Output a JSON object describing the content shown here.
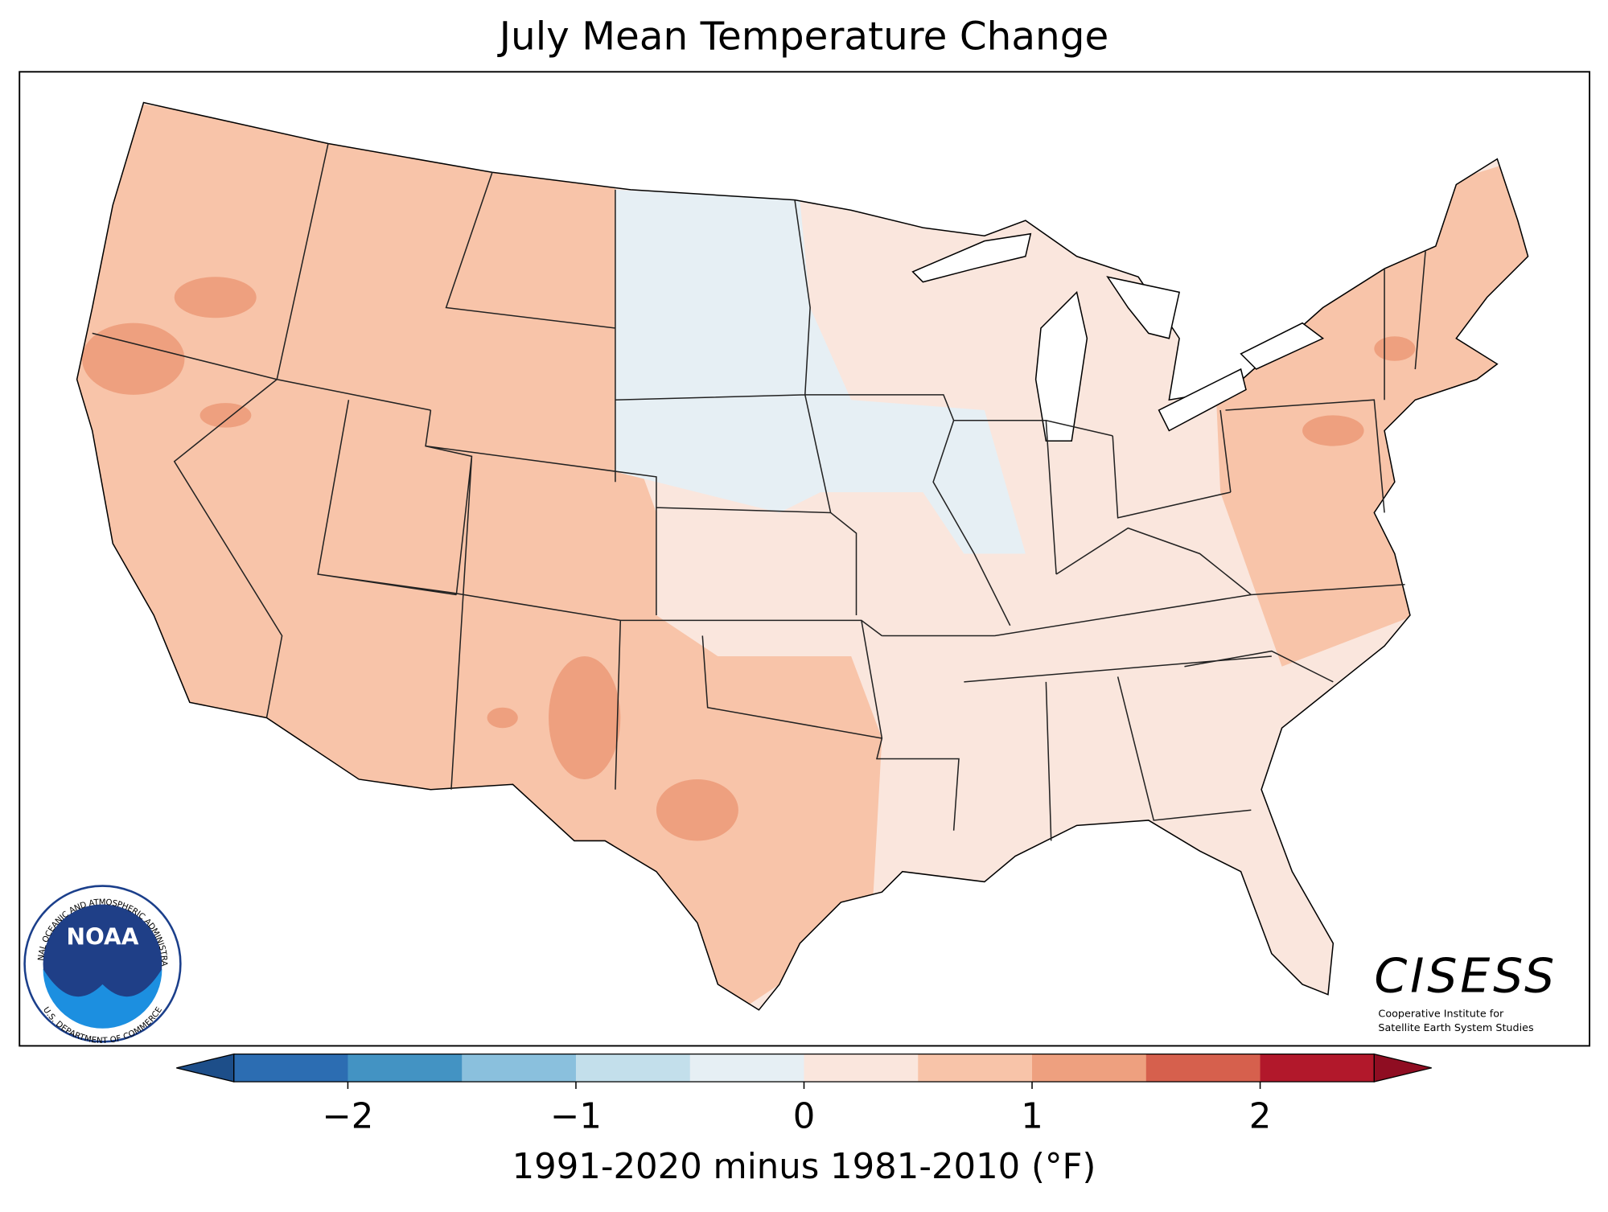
{
  "title": "July Mean Temperature Change",
  "logos": {
    "noaa": "NOAA",
    "noaa_ring_top": "NATIONAL OCEANIC AND ATMOSPHERIC ADMINISTRATION",
    "noaa_ring_bottom": "U.S. DEPARTMENT OF COMMERCE",
    "cisess": "CISESS",
    "cisess_line1": "Cooperative Institute for",
    "cisess_line2": "Satellite Earth System Studies"
  },
  "colorbar": {
    "label": "1991-2020 minus 1981-2010 (°F)",
    "xlim": [
      -2.5,
      2.5
    ],
    "bounds": [
      -2.5,
      -2,
      -1.5,
      -1,
      -0.5,
      0,
      0.5,
      1,
      1.5,
      2,
      2.5
    ],
    "colors": [
      "#2c6db2",
      "#4393c3",
      "#8ac0dd",
      "#c3dfeb",
      "#e6eff4",
      "#fae6dd",
      "#f8c4a9",
      "#eea07f",
      "#d6604d",
      "#b2182b"
    ],
    "under_color": "#1d4e89",
    "over_color": "#8f0d22",
    "ticks": [
      {
        "value": -2,
        "label": "−2"
      },
      {
        "value": -1,
        "label": "−1"
      },
      0,
      1,
      2
    ]
  }
}
